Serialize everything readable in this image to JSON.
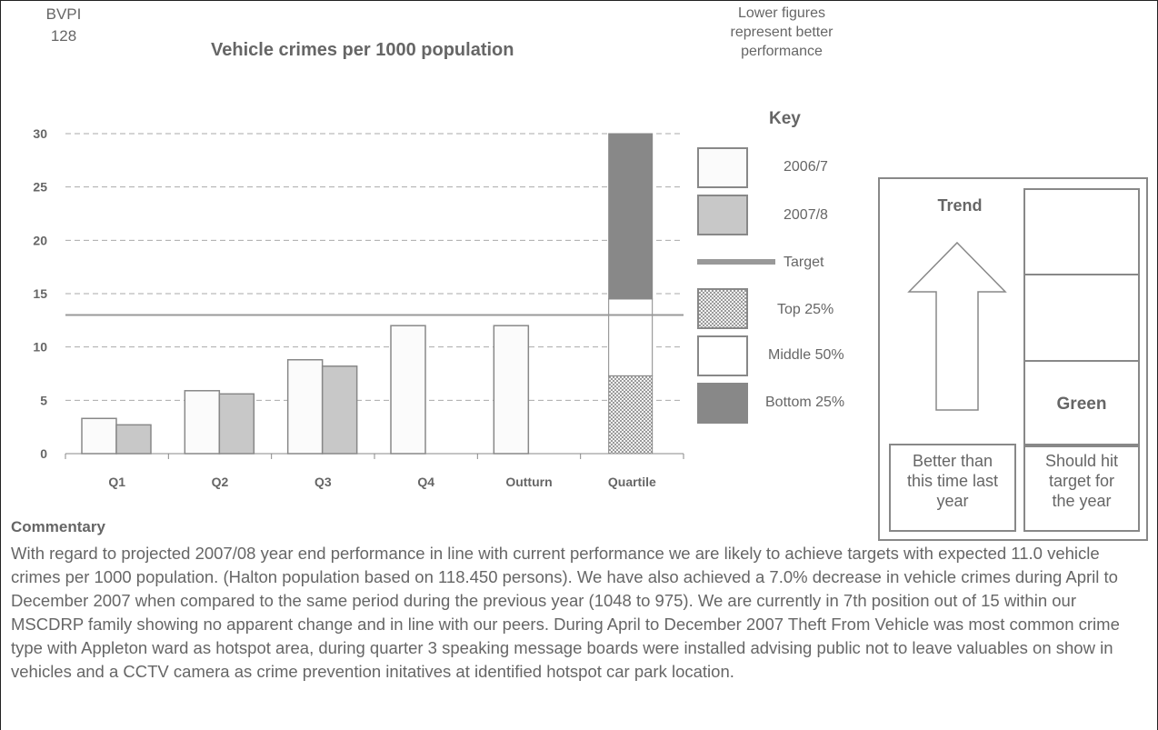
{
  "header": {
    "bvpi_line1": "BVPI",
    "bvpi_line2": "128",
    "title": "Vehicle crimes per 1000 population",
    "note_line1": "Lower figures",
    "note_line2": "represent better",
    "note_line3": "performance"
  },
  "key": {
    "title": "Key",
    "items": [
      "2006/7",
      "2007/8",
      "Target",
      "Top 25%",
      "Middle 50%",
      "Bottom 25%"
    ]
  },
  "trend": {
    "title": "Trend",
    "status": "Green",
    "caption_left": [
      "Better than",
      "this time last",
      "year"
    ],
    "caption_right": [
      "Should hit",
      "target for",
      "the year"
    ]
  },
  "commentary": {
    "title": "Commentary",
    "text": "With regard to projected 2007/08 year end performance in line with current performance we are likely to achieve targets with expected 11.0 vehicle crimes per 1000 population. (Halton population based on 118.450 persons). We have also achieved a 7.0% decrease in vehicle crimes during April to December 2007 when compared to the same period during the previous year (1048 to 975). We are currently in 7th position out of 15 within our MSCDRP family showing no apparent change and in line with our peers. During April to December 2007 Theft From Vehicle was most common crime type with Appleton ward as hotspot area, during quarter 3 speaking message boards were installed advising public not to leave valuables on show in vehicles and a CCTV camera as crime prevention initatives at identified hotspot car park location."
  },
  "colors": {
    "series_2006": "#fbfbfb",
    "series_2007": "#c8c8c8",
    "target": "#999999",
    "top25": "#cfcfcf",
    "middle50": "#ffffff",
    "bottom25": "#888888",
    "axis_text": "#666666"
  },
  "chart_data": {
    "type": "bar",
    "title": "Vehicle crimes per 1000 population",
    "categories": [
      "Q1",
      "Q2",
      "Q3",
      "Q4",
      "Outturn",
      "Quartile"
    ],
    "series": [
      {
        "name": "2006/7",
        "values": [
          3.3,
          5.9,
          8.8,
          12.0,
          12.0,
          null
        ]
      },
      {
        "name": "2007/8",
        "values": [
          2.7,
          5.6,
          8.2,
          null,
          null,
          null
        ]
      }
    ],
    "target": 13.0,
    "quartile": {
      "top25_upper": 7.3,
      "middle50_upper": 14.5,
      "bottom25_upper": 30
    },
    "ylim": [
      0,
      30
    ],
    "yticks": [
      0,
      5,
      10,
      15,
      20,
      25,
      30
    ],
    "grid": true,
    "legend_position": "right"
  }
}
